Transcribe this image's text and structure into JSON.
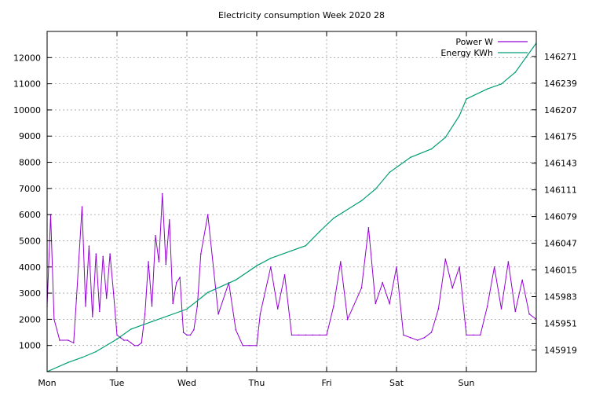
{
  "chart_data": {
    "type": "line",
    "title": "Electricity consumption Week 2020 28",
    "xlabel": "",
    "ylabel": "",
    "y2label": "",
    "grid": true,
    "legend_position": "top-right",
    "x_range": [
      0,
      7
    ],
    "x_ticks": [
      {
        "value": 0,
        "label": "Mon"
      },
      {
        "value": 1,
        "label": "Tue"
      },
      {
        "value": 2,
        "label": "Wed"
      },
      {
        "value": 3,
        "label": "Thu"
      },
      {
        "value": 4,
        "label": "Fri"
      },
      {
        "value": 5,
        "label": "Sat"
      },
      {
        "value": 6,
        "label": "Sun"
      }
    ],
    "ylim": [
      0,
      13000
    ],
    "y_ticks": [
      1000,
      2000,
      3000,
      4000,
      5000,
      6000,
      7000,
      8000,
      9000,
      10000,
      11000,
      12000
    ],
    "y2lim": [
      145893,
      146301
    ],
    "y2_ticks": [
      145919,
      145951,
      145983,
      146015,
      146047,
      146079,
      146111,
      146143,
      146175,
      146207,
      146239,
      146271
    ],
    "series": [
      {
        "name": "Power W",
        "axis": "y",
        "color": "#9400d3",
        "x": [
          0.0,
          0.05,
          0.1,
          0.18,
          0.3,
          0.38,
          0.42,
          0.5,
          0.55,
          0.6,
          0.65,
          0.7,
          0.75,
          0.8,
          0.85,
          0.9,
          0.95,
          1.0,
          1.05,
          1.1,
          1.15,
          1.2,
          1.25,
          1.3,
          1.35,
          1.4,
          1.45,
          1.5,
          1.55,
          1.6,
          1.65,
          1.7,
          1.75,
          1.8,
          1.85,
          1.9,
          1.95,
          2.0,
          2.05,
          2.1,
          2.15,
          2.2,
          2.3,
          2.45,
          2.6,
          2.7,
          2.8,
          2.9,
          3.0,
          3.05,
          3.2,
          3.3,
          3.4,
          3.5,
          3.6,
          3.7,
          3.8,
          3.9,
          4.0,
          4.1,
          4.2,
          4.3,
          4.5,
          4.6,
          4.7,
          4.8,
          4.9,
          5.0,
          5.1,
          5.2,
          5.3,
          5.4,
          5.5,
          5.6,
          5.7,
          5.8,
          5.9,
          6.0,
          6.1,
          6.2,
          6.3,
          6.4,
          6.5,
          6.6,
          6.7,
          6.8,
          6.9,
          7.0
        ],
        "values": [
          2500,
          6000,
          2000,
          1200,
          1200,
          1100,
          2800,
          6300,
          2500,
          4800,
          2100,
          4500,
          2300,
          4400,
          2800,
          4500,
          3000,
          1400,
          1300,
          1200,
          1200,
          1100,
          1000,
          1000,
          1100,
          2200,
          4200,
          2500,
          5200,
          4200,
          6800,
          4100,
          5800,
          2600,
          3400,
          3600,
          1500,
          1400,
          1400,
          1600,
          2500,
          4500,
          6000,
          2200,
          3400,
          1600,
          1000,
          1000,
          1000,
          2200,
          4000,
          2400,
          3700,
          1400,
          1400,
          1400,
          1400,
          1400,
          1400,
          2500,
          4200,
          2000,
          3200,
          5500,
          2600,
          3400,
          2600,
          4000,
          1400,
          1300,
          1200,
          1300,
          1500,
          2400,
          4300,
          3200,
          4000,
          1400,
          1400,
          1400,
          2500,
          4000,
          2400,
          4200,
          2300,
          3500,
          2200,
          2000
        ]
      },
      {
        "name": "Energy KWh",
        "axis": "y2",
        "color": "#009e73",
        "x": [
          0.0,
          0.3,
          0.5,
          0.7,
          1.0,
          1.2,
          1.5,
          2.0,
          2.3,
          2.7,
          3.0,
          3.2,
          3.5,
          3.7,
          3.9,
          4.1,
          4.5,
          4.7,
          4.9,
          5.2,
          5.5,
          5.7,
          5.9,
          6.0,
          6.3,
          6.5,
          6.7,
          7.0
        ],
        "values": [
          145893,
          145904,
          145910,
          145917,
          145932,
          145944,
          145953,
          145968,
          145988,
          146003,
          146020,
          146029,
          146038,
          146044,
          146061,
          146077,
          146098,
          146112,
          146132,
          146150,
          146160,
          146174,
          146200,
          146220,
          146232,
          146238,
          146252,
          146287
        ]
      }
    ]
  }
}
